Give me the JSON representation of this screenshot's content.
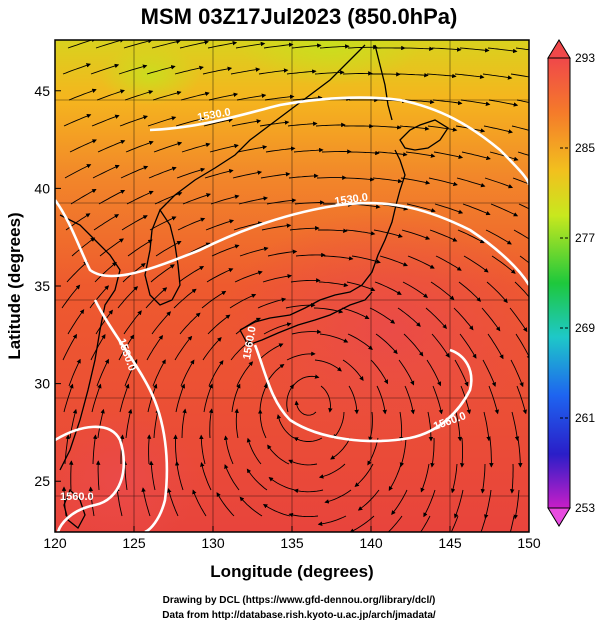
{
  "title": "MSM 03Z17Jul2023 (850.0hPa)",
  "x_axis": {
    "title": "Longitude (degrees)",
    "min": 120,
    "max": 150,
    "ticks": [
      "120",
      "125",
      "130",
      "135",
      "140",
      "145",
      "150"
    ]
  },
  "y_axis": {
    "title": "Latitude  (degrees)",
    "min": 22.4,
    "max": 47.6,
    "ticks": [
      "25",
      "30",
      "35",
      "40",
      "45"
    ]
  },
  "colorbar": {
    "min": 253,
    "max": 293,
    "labels": [
      "293",
      "285",
      "277",
      "269",
      "261",
      "253"
    ]
  },
  "contour_labels": [
    "1530.0",
    "1530.0",
    "1530.0",
    "1560.0",
    "1560.0",
    "1560.0"
  ],
  "credits": [
    "Drawing by DCL (https://www.gfd-dennou.org/library/dcl/)",
    "Data from http://database.rish.kyoto-u.ac.jp/arch/jmadata/"
  ],
  "colors": {
    "hot": "#e8443c",
    "warm": "#f06a2a",
    "mid": "#f5a623",
    "cool": "#d9d21e"
  }
}
